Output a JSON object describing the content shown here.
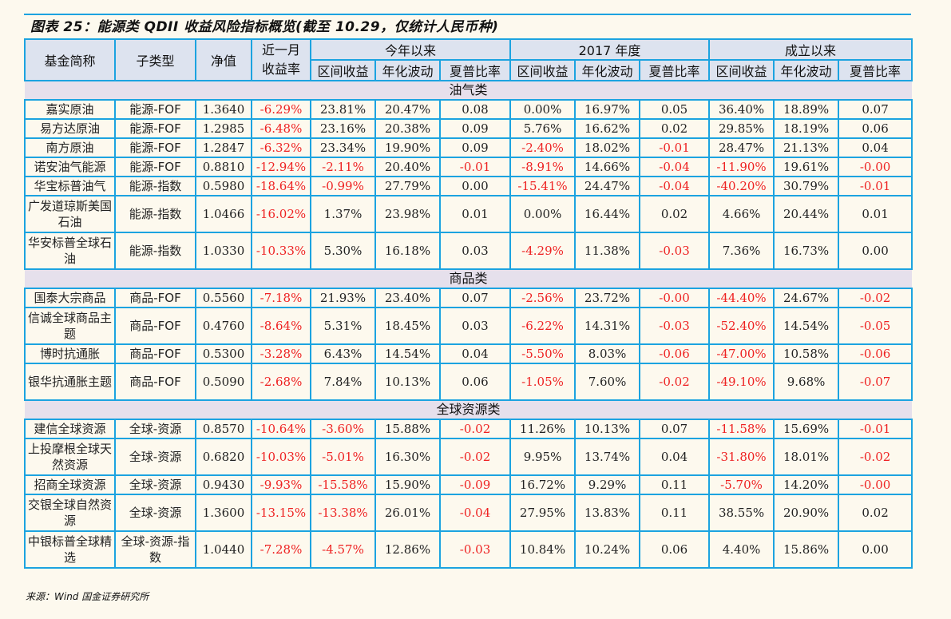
{
  "title": "图表 25：能源类 QDII 收益风险指标概览(截至 10.29，仅统计人民币种)",
  "header": {
    "fund_name": "基金简称",
    "sub_type": "子类型",
    "nav": "净值",
    "month_return_line1": "近一月",
    "month_return_line2": "收益率",
    "groups": [
      "今年以来",
      "2017 年度",
      "成立以来"
    ],
    "sub_columns": [
      "区间收益",
      "年化波动",
      "夏普比率"
    ]
  },
  "sections": [
    {
      "label": "油气类",
      "rows": [
        {
          "name": "嘉实原油",
          "type": "能源-FOF",
          "nav": "1.3640",
          "m1": "-6.29%",
          "ytd_ret": "23.81%",
          "ytd_vol": "20.47%",
          "ytd_sharpe": "0.08",
          "y17_ret": "0.00%",
          "y17_vol": "16.97%",
          "y17_sharpe": "0.05",
          "inc_ret": "36.40%",
          "inc_vol": "18.89%",
          "inc_sharpe": "0.07"
        },
        {
          "name": "易方达原油",
          "type": "能源-FOF",
          "nav": "1.2985",
          "m1": "-6.48%",
          "ytd_ret": "23.16%",
          "ytd_vol": "20.38%",
          "ytd_sharpe": "0.09",
          "y17_ret": "5.76%",
          "y17_vol": "16.62%",
          "y17_sharpe": "0.02",
          "inc_ret": "29.85%",
          "inc_vol": "18.19%",
          "inc_sharpe": "0.06"
        },
        {
          "name": "南方原油",
          "type": "能源-FOF",
          "nav": "1.2847",
          "m1": "-6.32%",
          "ytd_ret": "23.34%",
          "ytd_vol": "19.90%",
          "ytd_sharpe": "0.09",
          "y17_ret": "-2.40%",
          "y17_vol": "18.02%",
          "y17_sharpe": "-0.01",
          "inc_ret": "28.47%",
          "inc_vol": "21.13%",
          "inc_sharpe": "0.04"
        },
        {
          "name": "诺安油气能源",
          "type": "能源-FOF",
          "nav": "0.8810",
          "m1": "-12.94%",
          "ytd_ret": "-2.11%",
          "ytd_vol": "20.40%",
          "ytd_sharpe": "-0.01",
          "y17_ret": "-8.91%",
          "y17_vol": "14.66%",
          "y17_sharpe": "-0.04",
          "inc_ret": "-11.90%",
          "inc_vol": "19.61%",
          "inc_sharpe": "-0.00"
        },
        {
          "name": "华宝标普油气",
          "type": "能源-指数",
          "nav": "0.5980",
          "m1": "-18.64%",
          "ytd_ret": "-0.99%",
          "ytd_vol": "27.79%",
          "ytd_sharpe": "0.00",
          "y17_ret": "-15.41%",
          "y17_vol": "24.47%",
          "y17_sharpe": "-0.04",
          "inc_ret": "-40.20%",
          "inc_vol": "30.79%",
          "inc_sharpe": "-0.01"
        },
        {
          "name": "广发道琼斯美国石油",
          "type": "能源-指数",
          "nav": "1.0466",
          "m1": "-16.02%",
          "ytd_ret": "1.37%",
          "ytd_vol": "23.98%",
          "ytd_sharpe": "0.01",
          "y17_ret": "0.00%",
          "y17_vol": "16.44%",
          "y17_sharpe": "0.02",
          "inc_ret": "4.66%",
          "inc_vol": "20.44%",
          "inc_sharpe": "0.01"
        },
        {
          "name": "华安标普全球石油",
          "type": "能源-指数",
          "nav": "1.0330",
          "m1": "-10.33%",
          "ytd_ret": "5.30%",
          "ytd_vol": "16.18%",
          "ytd_sharpe": "0.03",
          "y17_ret": "-4.29%",
          "y17_vol": "11.38%",
          "y17_sharpe": "-0.03",
          "inc_ret": "7.36%",
          "inc_vol": "16.73%",
          "inc_sharpe": "0.00"
        }
      ]
    },
    {
      "label": "商品类",
      "rows": [
        {
          "name": "国泰大宗商品",
          "type": "商品-FOF",
          "nav": "0.5560",
          "m1": "-7.18%",
          "ytd_ret": "21.93%",
          "ytd_vol": "23.40%",
          "ytd_sharpe": "0.07",
          "y17_ret": "-2.56%",
          "y17_vol": "23.72%",
          "y17_sharpe": "-0.00",
          "inc_ret": "-44.40%",
          "inc_vol": "24.67%",
          "inc_sharpe": "-0.02"
        },
        {
          "name": "信诚全球商品主题",
          "type": "商品-FOF",
          "nav": "0.4760",
          "m1": "-8.64%",
          "ytd_ret": "5.31%",
          "ytd_vol": "18.45%",
          "ytd_sharpe": "0.03",
          "y17_ret": "-6.22%",
          "y17_vol": "14.31%",
          "y17_sharpe": "-0.03",
          "inc_ret": "-52.40%",
          "inc_vol": "14.54%",
          "inc_sharpe": "-0.05"
        },
        {
          "name": "博时抗通胀",
          "type": "商品-FOF",
          "nav": "0.5300",
          "m1": "-3.28%",
          "ytd_ret": "6.43%",
          "ytd_vol": "14.54%",
          "ytd_sharpe": "0.04",
          "y17_ret": "-5.50%",
          "y17_vol": "8.03%",
          "y17_sharpe": "-0.06",
          "inc_ret": "-47.00%",
          "inc_vol": "10.58%",
          "inc_sharpe": "-0.06"
        },
        {
          "name": "银华抗通胀主题",
          "type": "商品-FOF",
          "nav": "0.5090",
          "m1": "-2.68%",
          "ytd_ret": "7.84%",
          "ytd_vol": "10.13%",
          "ytd_sharpe": "0.06",
          "y17_ret": "-1.05%",
          "y17_vol": "7.60%",
          "y17_sharpe": "-0.02",
          "inc_ret": "-49.10%",
          "inc_vol": "9.68%",
          "inc_sharpe": "-0.07"
        }
      ]
    },
    {
      "label": "全球资源类",
      "rows": [
        {
          "name": "建信全球资源",
          "type": "全球-资源",
          "nav": "0.8570",
          "m1": "-10.64%",
          "ytd_ret": "-3.60%",
          "ytd_vol": "15.88%",
          "ytd_sharpe": "-0.02",
          "y17_ret": "11.26%",
          "y17_vol": "10.13%",
          "y17_sharpe": "0.07",
          "inc_ret": "-11.58%",
          "inc_vol": "15.69%",
          "inc_sharpe": "-0.01"
        },
        {
          "name": "上投摩根全球天然资源",
          "type": "全球-资源",
          "nav": "0.6820",
          "m1": "-10.03%",
          "ytd_ret": "-5.01%",
          "ytd_vol": "16.30%",
          "ytd_sharpe": "-0.02",
          "y17_ret": "9.95%",
          "y17_vol": "13.74%",
          "y17_sharpe": "0.04",
          "inc_ret": "-31.80%",
          "inc_vol": "18.01%",
          "inc_sharpe": "-0.02"
        },
        {
          "name": "招商全球资源",
          "type": "全球-资源",
          "nav": "0.9430",
          "m1": "-9.93%",
          "ytd_ret": "-15.58%",
          "ytd_vol": "15.90%",
          "ytd_sharpe": "-0.09",
          "y17_ret": "16.72%",
          "y17_vol": "9.29%",
          "y17_sharpe": "0.11",
          "inc_ret": "-5.70%",
          "inc_vol": "14.20%",
          "inc_sharpe": "-0.00"
        },
        {
          "name": "交银全球自然资源",
          "type": "全球-资源",
          "nav": "1.3600",
          "m1": "-13.15%",
          "ytd_ret": "-13.38%",
          "ytd_vol": "26.01%",
          "ytd_sharpe": "-0.04",
          "y17_ret": "27.95%",
          "y17_vol": "13.83%",
          "y17_sharpe": "0.11",
          "inc_ret": "38.55%",
          "inc_vol": "20.90%",
          "inc_sharpe": "0.02"
        },
        {
          "name": "中银标普全球精选",
          "type": "全球-资源-指数",
          "nav": "1.0440",
          "m1": "-7.28%",
          "ytd_ret": "-4.57%",
          "ytd_vol": "12.86%",
          "ytd_sharpe": "-0.03",
          "y17_ret": "10.84%",
          "y17_vol": "10.24%",
          "y17_sharpe": "0.06",
          "inc_ret": "4.40%",
          "inc_vol": "15.86%",
          "inc_sharpe": "0.00"
        }
      ]
    }
  ],
  "source": "来源：Wind 国金证券研究所",
  "colors": {
    "border": "#1ca3e0",
    "header_bg": "#dde3ef",
    "section_bg": "#e6e0ec",
    "negative": "#ee2222",
    "page_bg": "#fdf9ee"
  }
}
